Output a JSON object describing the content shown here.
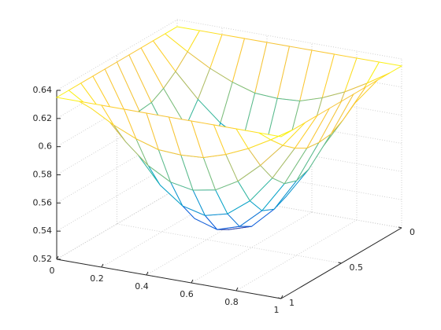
{
  "chart_data": {
    "type": "mesh",
    "x": [
      0,
      0.1,
      0.2,
      0.3,
      0.4,
      0.5,
      0.6,
      0.7,
      0.8,
      0.9,
      1
    ],
    "y": [
      0,
      0.1,
      0.2,
      0.3,
      0.4,
      0.5,
      0.6,
      0.7,
      0.8,
      0.9,
      1
    ],
    "z": [
      [
        0.635,
        0.635,
        0.635,
        0.635,
        0.635,
        0.635,
        0.635,
        0.635,
        0.635,
        0.635,
        0.635
      ],
      [
        0.635,
        0.625,
        0.616,
        0.609,
        0.604,
        0.603,
        0.604,
        0.609,
        0.616,
        0.625,
        0.635
      ],
      [
        0.635,
        0.616,
        0.599,
        0.585,
        0.576,
        0.573,
        0.576,
        0.585,
        0.599,
        0.616,
        0.635
      ],
      [
        0.635,
        0.609,
        0.585,
        0.566,
        0.554,
        0.55,
        0.554,
        0.566,
        0.585,
        0.609,
        0.635
      ],
      [
        0.635,
        0.604,
        0.576,
        0.554,
        0.54,
        0.535,
        0.54,
        0.554,
        0.576,
        0.604,
        0.635
      ],
      [
        0.635,
        0.603,
        0.573,
        0.55,
        0.535,
        0.53,
        0.535,
        0.55,
        0.573,
        0.603,
        0.635
      ],
      [
        0.635,
        0.604,
        0.576,
        0.554,
        0.54,
        0.535,
        0.54,
        0.554,
        0.576,
        0.604,
        0.635
      ],
      [
        0.635,
        0.609,
        0.585,
        0.566,
        0.554,
        0.55,
        0.554,
        0.566,
        0.585,
        0.609,
        0.635
      ],
      [
        0.635,
        0.616,
        0.599,
        0.585,
        0.576,
        0.573,
        0.576,
        0.585,
        0.599,
        0.616,
        0.635
      ],
      [
        0.635,
        0.625,
        0.616,
        0.609,
        0.604,
        0.603,
        0.604,
        0.609,
        0.616,
        0.625,
        0.635
      ],
      [
        0.635,
        0.635,
        0.635,
        0.635,
        0.635,
        0.635,
        0.635,
        0.635,
        0.635,
        0.635,
        0.635
      ]
    ],
    "xlim": [
      0,
      1
    ],
    "ylim": [
      0,
      1
    ],
    "zlim": [
      0.52,
      0.64
    ],
    "xticks": [
      0,
      0.2,
      0.4,
      0.6,
      0.8,
      1
    ],
    "yticks": [
      0,
      0.5,
      1
    ],
    "zticks": [
      0.52,
      0.54,
      0.56,
      0.58,
      0.6,
      0.62,
      0.64
    ],
    "grid": true,
    "colormap": [
      "#352a87",
      "#0f5cdd",
      "#1481d6",
      "#06a4ca",
      "#2eb7a4",
      "#87bf77",
      "#d1bb59",
      "#fec832",
      "#f9fb0e"
    ]
  }
}
